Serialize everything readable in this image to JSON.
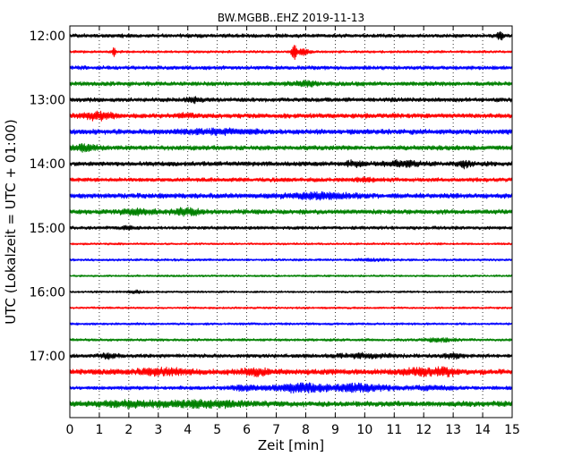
{
  "chart_data": {
    "type": "line",
    "title": "BW.MGBB..EHZ 2019-11-13",
    "xlabel": "Zeit  [min]",
    "ylabel": "UTC (Lokalzeit = UTC + 01:00)",
    "xlim": [
      0,
      15
    ],
    "x_ticks": [
      "0",
      "1",
      "2",
      "3",
      "4",
      "5",
      "6",
      "7",
      "8",
      "9",
      "10",
      "11",
      "12",
      "13",
      "14",
      "15"
    ],
    "y_tick_labels": [
      "12:00",
      "13:00",
      "14:00",
      "15:00",
      "16:00",
      "17:00"
    ],
    "trace_interval_minutes": 15,
    "grid": "vertical-dotted",
    "colors": [
      "#000000",
      "#ff0000",
      "#0000ff",
      "#008000"
    ],
    "series": [
      {
        "start": "12:00",
        "color": "#000000",
        "amplitude": 0.45,
        "events": [
          {
            "t": 14.6,
            "a": 1.1,
            "w": 0.1
          }
        ]
      },
      {
        "start": "12:15",
        "color": "#ff0000",
        "amplitude": 0.3,
        "events": [
          {
            "t": 1.5,
            "a": 1.6,
            "w": 0.05
          },
          {
            "t": 7.6,
            "a": 2.8,
            "w": 0.08
          },
          {
            "t": 7.9,
            "a": 0.8,
            "w": 0.2
          }
        ]
      },
      {
        "start": "12:30",
        "color": "#0000ff",
        "amplitude": 0.45,
        "events": []
      },
      {
        "start": "12:45",
        "color": "#008000",
        "amplitude": 0.5,
        "events": [
          {
            "t": 8.0,
            "a": 0.5,
            "w": 0.4
          }
        ]
      },
      {
        "start": "13:00",
        "color": "#000000",
        "amplitude": 0.5,
        "events": [
          {
            "t": 4.2,
            "a": 0.5,
            "w": 0.3
          }
        ]
      },
      {
        "start": "13:15",
        "color": "#ff0000",
        "amplitude": 0.55,
        "events": [
          {
            "t": 1.0,
            "a": 0.8,
            "w": 0.6
          },
          {
            "t": 4.0,
            "a": 0.4,
            "w": 0.3
          }
        ]
      },
      {
        "start": "13:30",
        "color": "#0000ff",
        "amplitude": 0.6,
        "events": [
          {
            "t": 5.0,
            "a": 0.4,
            "w": 1.2
          }
        ]
      },
      {
        "start": "13:45",
        "color": "#008000",
        "amplitude": 0.55,
        "events": [
          {
            "t": 0.5,
            "a": 0.7,
            "w": 0.4
          }
        ]
      },
      {
        "start": "14:00",
        "color": "#000000",
        "amplitude": 0.55,
        "events": [
          {
            "t": 9.7,
            "a": 0.6,
            "w": 0.3
          },
          {
            "t": 11.3,
            "a": 0.5,
            "w": 0.6
          },
          {
            "t": 13.4,
            "a": 0.7,
            "w": 0.2
          }
        ]
      },
      {
        "start": "14:15",
        "color": "#ff0000",
        "amplitude": 0.5,
        "events": [
          {
            "t": 10.0,
            "a": 0.3,
            "w": 0.4
          }
        ]
      },
      {
        "start": "14:30",
        "color": "#0000ff",
        "amplitude": 0.6,
        "events": [
          {
            "t": 8.5,
            "a": 0.5,
            "w": 1.2
          }
        ]
      },
      {
        "start": "14:45",
        "color": "#008000",
        "amplitude": 0.55,
        "events": [
          {
            "t": 2.3,
            "a": 0.5,
            "w": 0.6
          },
          {
            "t": 4.0,
            "a": 0.7,
            "w": 0.5
          }
        ]
      },
      {
        "start": "15:00",
        "color": "#000000",
        "amplitude": 0.4,
        "events": [
          {
            "t": 2.0,
            "a": 0.3,
            "w": 0.2
          }
        ]
      },
      {
        "start": "15:15",
        "color": "#ff0000",
        "amplitude": 0.25,
        "events": []
      },
      {
        "start": "15:30",
        "color": "#0000ff",
        "amplitude": 0.28,
        "events": [
          {
            "t": 10.3,
            "a": 0.2,
            "w": 0.5
          }
        ]
      },
      {
        "start": "15:45",
        "color": "#008000",
        "amplitude": 0.25,
        "events": []
      },
      {
        "start": "16:00",
        "color": "#000000",
        "amplitude": 0.25,
        "events": [
          {
            "t": 2.2,
            "a": 0.3,
            "w": 0.2
          }
        ]
      },
      {
        "start": "16:15",
        "color": "#ff0000",
        "amplitude": 0.25,
        "events": []
      },
      {
        "start": "16:30",
        "color": "#0000ff",
        "amplitude": 0.28,
        "events": []
      },
      {
        "start": "16:45",
        "color": "#008000",
        "amplitude": 0.32,
        "events": [
          {
            "t": 12.5,
            "a": 0.4,
            "w": 0.5
          }
        ]
      },
      {
        "start": "17:00",
        "color": "#000000",
        "amplitude": 0.45,
        "events": [
          {
            "t": 1.3,
            "a": 0.5,
            "w": 0.3
          },
          {
            "t": 10.0,
            "a": 0.4,
            "w": 1.0
          },
          {
            "t": 13.0,
            "a": 0.5,
            "w": 0.3
          }
        ]
      },
      {
        "start": "17:15",
        "color": "#ff0000",
        "amplitude": 0.65,
        "events": [
          {
            "t": 3.2,
            "a": 0.6,
            "w": 0.9
          },
          {
            "t": 6.3,
            "a": 0.7,
            "w": 0.5
          },
          {
            "t": 11.8,
            "a": 0.6,
            "w": 0.6
          },
          {
            "t": 12.7,
            "a": 0.7,
            "w": 0.4
          }
        ]
      },
      {
        "start": "17:30",
        "color": "#0000ff",
        "amplitude": 0.45,
        "events": [
          {
            "t": 6.0,
            "a": 0.5,
            "w": 0.6
          },
          {
            "t": 7.8,
            "a": 1.0,
            "w": 0.8
          },
          {
            "t": 9.8,
            "a": 0.9,
            "w": 1.0
          },
          {
            "t": 12.3,
            "a": 0.5,
            "w": 0.6
          }
        ]
      },
      {
        "start": "17:45",
        "color": "#008000",
        "amplitude": 0.65,
        "events": [
          {
            "t": 2.0,
            "a": 0.5,
            "w": 1.0
          },
          {
            "t": 4.5,
            "a": 0.6,
            "w": 1.4
          }
        ]
      }
    ]
  }
}
